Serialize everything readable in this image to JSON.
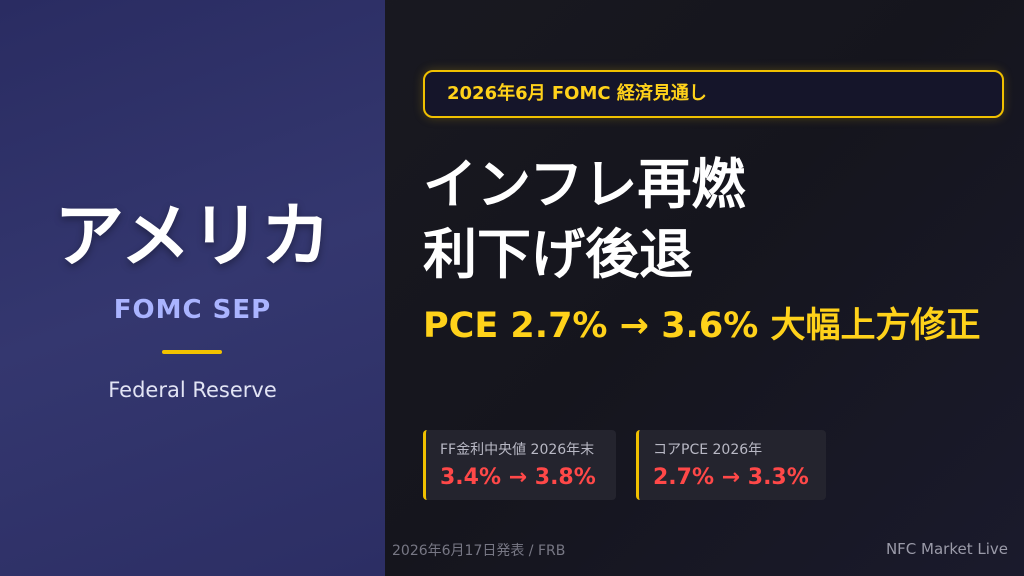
{
  "left": {
    "title": "アメリカ",
    "subtitle": "FOMC SEP",
    "caption": "Federal Reserve"
  },
  "badge": "2026年6月 FOMC 経済見通し",
  "headline": [
    "インフレ再燃",
    "利下げ後退"
  ],
  "subhead": "PCE 2.7% → 3.6% 大幅上方修正",
  "cards": [
    {
      "label": "FF金利中央値 2026年末",
      "value": "3.4% → 3.8%"
    },
    {
      "label": "コアPCE 2026年",
      "value": "2.7% → 3.3%"
    }
  ],
  "footer": {
    "source": "2026年6月17日発表 / FRB",
    "brand": "NFC Market Live"
  }
}
